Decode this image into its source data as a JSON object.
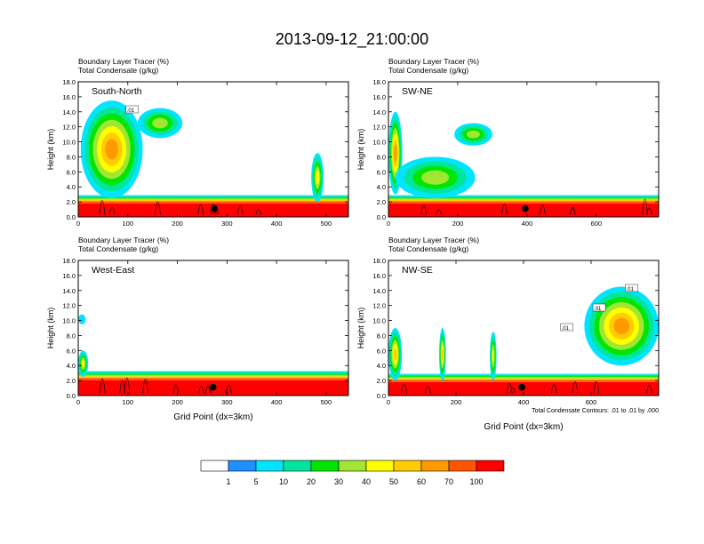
{
  "title": "2013-09-12_21:00:00",
  "header_line1": "Boundary Layer Tracer   (%)",
  "header_line2": "Total Condensate   (g/kg)",
  "ylabel": "Height (km)",
  "xlabel": "Grid Point (dx=3km)",
  "footnote": "Total Condensate Contours: .01 to .01 by .000",
  "colorbar": {
    "colors": [
      "#ffffff",
      "#1e90ff",
      "#00e5ff",
      "#00e69c",
      "#00e600",
      "#a0e632",
      "#ffff00",
      "#ffcc00",
      "#ff9900",
      "#ff5500",
      "#ff0000"
    ],
    "labels": [
      "1",
      "5",
      "10",
      "20",
      "30",
      "40",
      "50",
      "60",
      "70",
      "100"
    ]
  },
  "chart_data": [
    {
      "type": "heatmap",
      "panel": "South-North",
      "xlim": [
        0,
        545
      ],
      "xticks": [
        "0",
        "100",
        "200",
        "300",
        "400",
        "500"
      ],
      "ylim": [
        0,
        18
      ],
      "yticks": [
        "0.0",
        "2.0",
        "4.0",
        "6.0",
        "8.0",
        "10.0",
        "12.0",
        "14.0",
        "16.0",
        "18.0"
      ],
      "contour_labels": [
        ".01"
      ],
      "marker": {
        "x": 275,
        "y": 1.1
      },
      "boundary_layer_top_km": 2.5,
      "plumes": [
        {
          "x": [
            5,
            130
          ],
          "y": [
            2.5,
            15.5
          ],
          "peak_pct": 60
        },
        {
          "x": [
            120,
            210
          ],
          "y": [
            10.5,
            14.5
          ],
          "peak_pct": 30
        },
        {
          "x": [
            470,
            495
          ],
          "y": [
            2,
            8.5
          ],
          "peak_pct": 40
        }
      ]
    },
    {
      "type": "heatmap",
      "panel": "SW-NE",
      "xlim": [
        0,
        780
      ],
      "xticks": [
        "0",
        "200",
        "400",
        "600"
      ],
      "ylim": [
        0,
        18
      ],
      "yticks": [
        "0.0",
        "2.0",
        "4.0",
        "6.0",
        "8.0",
        "10.0",
        "12.0",
        "14.0",
        "16.0",
        "18.0"
      ],
      "contour_labels": [],
      "marker": {
        "x": 395,
        "y": 1.1
      },
      "boundary_layer_top_km": 2.5,
      "plumes": [
        {
          "x": [
            0,
            40
          ],
          "y": [
            3,
            14
          ],
          "peak_pct": 60
        },
        {
          "x": [
            190,
            300
          ],
          "y": [
            9.5,
            12.5
          ],
          "peak_pct": 30
        },
        {
          "x": [
            20,
            250
          ],
          "y": [
            2.5,
            8
          ],
          "peak_pct": 30
        }
      ]
    },
    {
      "type": "heatmap",
      "panel": "West-East",
      "xlim": [
        0,
        545
      ],
      "xticks": [
        "0",
        "100",
        "200",
        "300",
        "400",
        "500"
      ],
      "ylim": [
        0,
        18
      ],
      "yticks": [
        "0.0",
        "2.0",
        "4.0",
        "6.0",
        "8.0",
        "10.0",
        "12.0",
        "14.0",
        "16.0",
        "18.0"
      ],
      "contour_labels": [],
      "marker": {
        "x": 272,
        "y": 1.1
      },
      "boundary_layer_top_km": 2.8,
      "plumes": [
        {
          "x": [
            0,
            15
          ],
          "y": [
            9.5,
            10.8
          ],
          "peak_pct": 5
        },
        {
          "x": [
            0,
            20
          ],
          "y": [
            2.5,
            6
          ],
          "peak_pct": 40
        }
      ]
    },
    {
      "type": "heatmap",
      "panel": "NW-SE",
      "xlim": [
        0,
        800
      ],
      "xticks": [
        "0",
        "200",
        "400",
        "600"
      ],
      "ylim": [
        0,
        18
      ],
      "yticks": [
        "0.0",
        "2.0",
        "4.0",
        "6.0",
        "8.0",
        "10.0",
        "12.0",
        "14.0",
        "16.0",
        "18.0"
      ],
      "contour_labels": [
        ".01",
        ".01",
        ".01"
      ],
      "marker": {
        "x": 395,
        "y": 1.1
      },
      "boundary_layer_top_km": 2.5,
      "plumes": [
        {
          "x": [
            580,
            800
          ],
          "y": [
            4,
            14.5
          ],
          "peak_pct": 60
        },
        {
          "x": [
            0,
            40
          ],
          "y": [
            2,
            9
          ],
          "peak_pct": 50
        },
        {
          "x": [
            150,
            170
          ],
          "y": [
            2,
            9
          ],
          "peak_pct": 50
        },
        {
          "x": [
            300,
            320
          ],
          "y": [
            2,
            8.5
          ],
          "peak_pct": 40
        }
      ]
    }
  ]
}
